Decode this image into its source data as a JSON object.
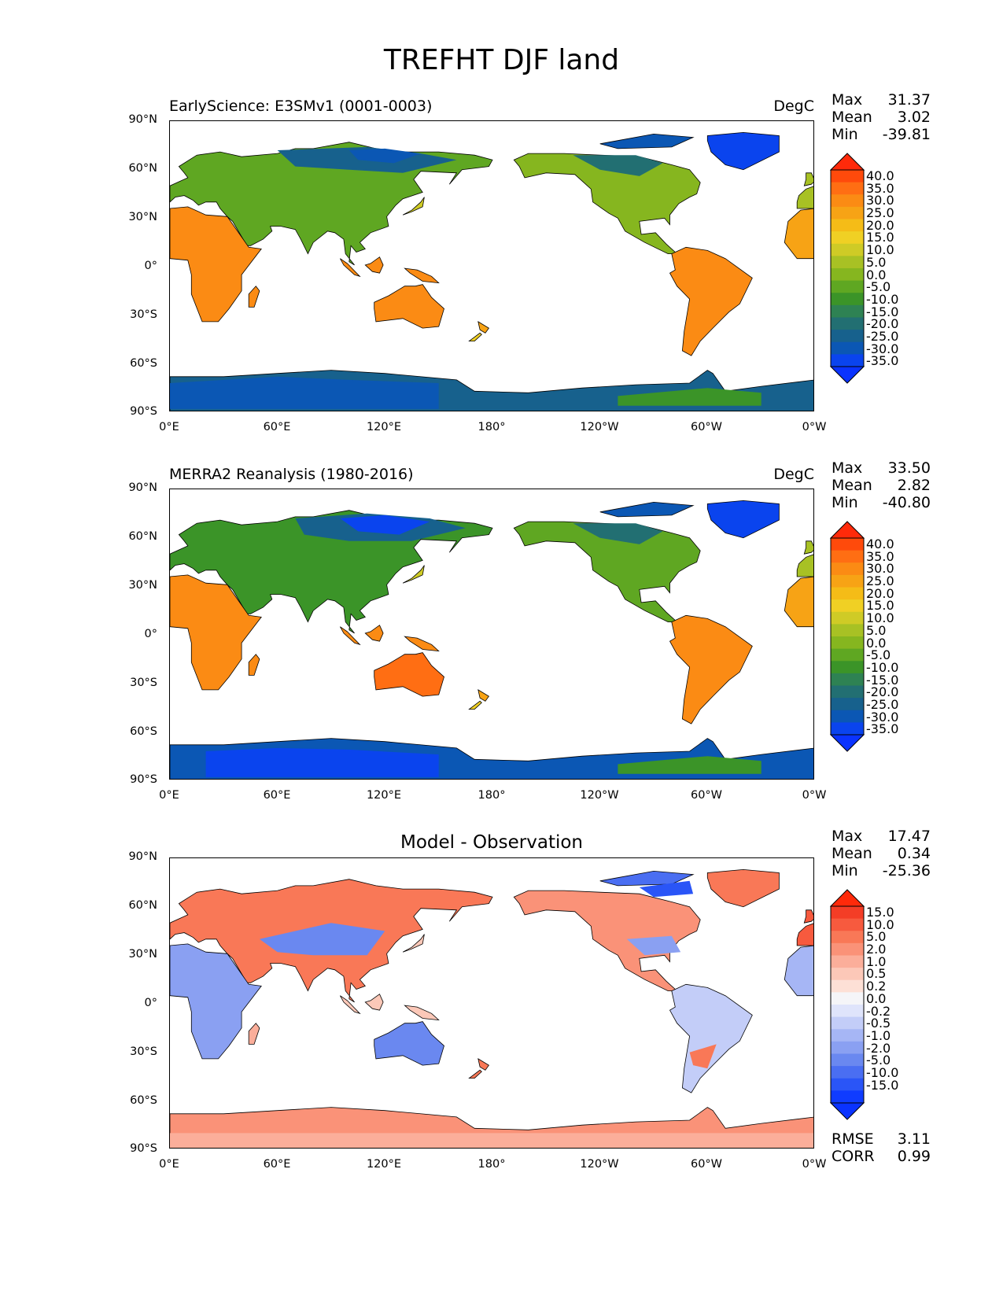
{
  "title": "TREFHT DJF land",
  "lat_labels": [
    "90°N",
    "60°N",
    "30°N",
    "0°",
    "30°S",
    "60°S",
    "90°S"
  ],
  "lon_labels": [
    "0°E",
    "60°E",
    "120°E",
    "180°",
    "120°W",
    "60°W",
    "0°W"
  ],
  "panels": {
    "model": {
      "title": "EarlyScience: E3SMv1 (0001-0003)",
      "units": "DegC",
      "stats": {
        "max_label": "Max",
        "max": "31.37",
        "mean_label": "Mean",
        "mean": "3.02",
        "min_label": "Min",
        "min": "-39.81"
      },
      "colorbar": {
        "labels": [
          "40.0",
          "35.0",
          "30.0",
          "25.0",
          "20.0",
          "15.0",
          "10.0",
          "5.0",
          "0.0",
          "-5.0",
          "-10.0",
          "-15.0",
          "-20.0",
          "-25.0",
          "-30.0",
          "-35.0"
        ],
        "colors": [
          "#ff4a0b",
          "#ff6e13",
          "#fb8b14",
          "#f7a315",
          "#f5bc17",
          "#f0d024",
          "#cfcb26",
          "#a8c124",
          "#86b61f",
          "#5fa722",
          "#3b9428",
          "#2e8253",
          "#226f72",
          "#17618d",
          "#0b57b4",
          "#0a44ee"
        ],
        "max_color": "#ff2a0a",
        "min_color": "#0a33ff"
      }
    },
    "reference": {
      "title": "MERRA2 Reanalysis (1980-2016)",
      "units": "DegC",
      "stats": {
        "max_label": "Max",
        "max": "33.50",
        "mean_label": "Mean",
        "mean": "2.82",
        "min_label": "Min",
        "min": "-40.80"
      },
      "colorbar": {
        "labels": [
          "40.0",
          "35.0",
          "30.0",
          "25.0",
          "20.0",
          "15.0",
          "10.0",
          "5.0",
          "0.0",
          "-5.0",
          "-10.0",
          "-15.0",
          "-20.0",
          "-25.0",
          "-30.0",
          "-35.0"
        ],
        "colors": [
          "#ff4a0b",
          "#ff6e13",
          "#fb8b14",
          "#f7a315",
          "#f5bc17",
          "#f0d024",
          "#cfcb26",
          "#a8c124",
          "#86b61f",
          "#5fa722",
          "#3b9428",
          "#2e8253",
          "#226f72",
          "#17618d",
          "#0b57b4",
          "#0a44ee"
        ],
        "max_color": "#ff2a0a",
        "min_color": "#0a33ff"
      }
    },
    "difference": {
      "title": "Model - Observation",
      "stats": {
        "max_label": "Max",
        "max": "17.47",
        "mean_label": "Mean",
        "mean": "0.34",
        "min_label": "Min",
        "min": "-25.36"
      },
      "metrics": {
        "rmse_label": "RMSE",
        "rmse": "3.11",
        "corr_label": "CORR",
        "corr": "0.99"
      },
      "colorbar": {
        "labels": [
          "15.0",
          "10.0",
          "5.0",
          "2.0",
          "1.0",
          "0.5",
          "0.2",
          "0.0",
          "-0.2",
          "-0.5",
          "-1.0",
          "-2.0",
          "-5.0",
          "-10.0",
          "-15.0"
        ],
        "colors": [
          "#f43d26",
          "#f75a3e",
          "#f97857",
          "#fa9278",
          "#fbae9a",
          "#fcc8b8",
          "#fde0d6",
          "#f5f5f8",
          "#dfe4fb",
          "#c3cdf8",
          "#a6b6f5",
          "#8aa0f2",
          "#6a88f0",
          "#4a6ef2",
          "#2a55f7",
          "#0f3cff"
        ],
        "max_color": "#ff2a0a",
        "min_color": "#0a33ff"
      }
    }
  }
}
